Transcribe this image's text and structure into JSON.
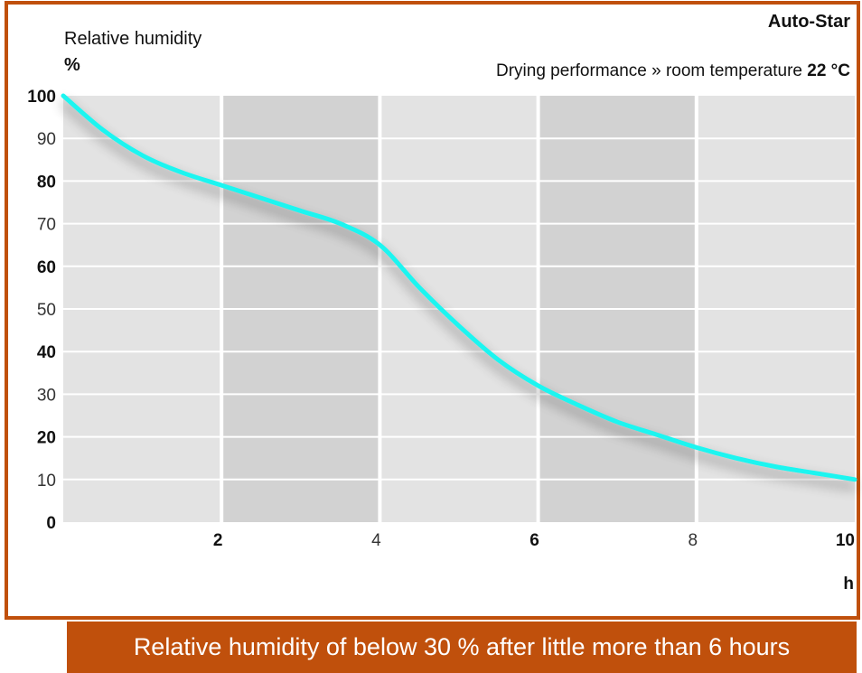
{
  "brand": "Auto-Star",
  "subtitle": {
    "text": "Drying performance » room temperature ",
    "value": "22 °C"
  },
  "caption": "Relative humidity of below 30 % after little more than 6 hours",
  "colors": {
    "frame": "#c0500c",
    "caption_bg": "#c0500c",
    "curve": "#1ef5f0",
    "band_light": "#e3e3e3",
    "band_dark": "#d2d2d2",
    "grid": "#ffffff"
  },
  "chart_data": {
    "type": "line",
    "title": "",
    "ylabel": "Relative humidity",
    "yunit": "%",
    "xlabel": "h",
    "xlim": [
      0,
      10
    ],
    "ylim": [
      0,
      100
    ],
    "x_ticks": [
      "2",
      "4",
      "6",
      "8",
      "10"
    ],
    "x_tick_values": [
      2,
      4,
      6,
      8,
      10
    ],
    "x_ticks_bold": [
      true,
      false,
      true,
      false,
      true
    ],
    "y_ticks": [
      "100",
      "90",
      "80",
      "70",
      "60",
      "50",
      "40",
      "30",
      "20",
      "10",
      "0"
    ],
    "y_tick_values": [
      100,
      90,
      80,
      70,
      60,
      50,
      40,
      30,
      20,
      10,
      0
    ],
    "y_ticks_bold": [
      true,
      false,
      true,
      false,
      true,
      false,
      true,
      false,
      true,
      false,
      true
    ],
    "grid": true,
    "series": [
      {
        "x": [
          0,
          0.5,
          1,
          1.5,
          2,
          2.5,
          3,
          3.5,
          4,
          4.5,
          5,
          5.5,
          6,
          6.5,
          7,
          7.5,
          8,
          8.5,
          9,
          9.5,
          10
        ],
        "y": [
          100,
          92,
          86,
          82,
          79,
          76,
          73,
          70,
          65,
          55,
          46,
          38,
          32,
          27.5,
          23.5,
          20.5,
          17.5,
          15,
          13,
          11.5,
          10
        ]
      }
    ]
  }
}
